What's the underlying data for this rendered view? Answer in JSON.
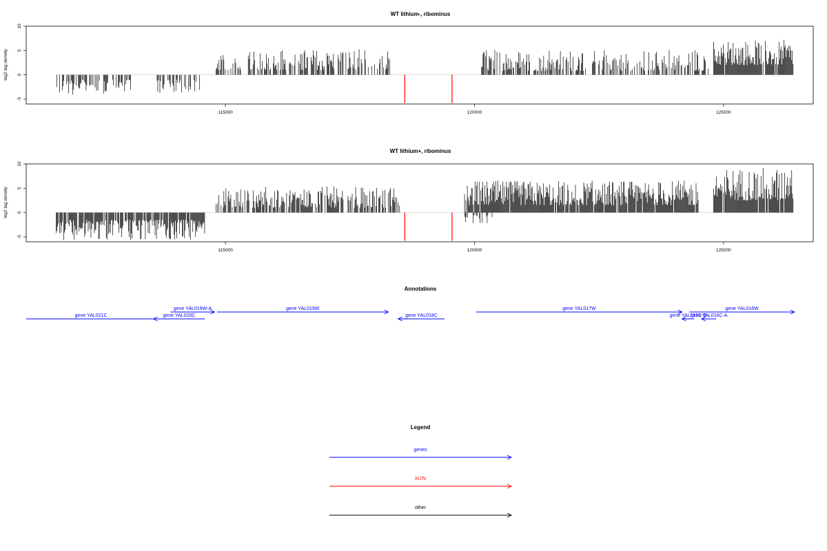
{
  "colors": {
    "gene": "#0000ff",
    "xut": "#ff0000",
    "other": "#000000",
    "density": "#000000"
  },
  "chart_data": [
    {
      "type": "bar",
      "title": "WT lithium-, ribominus",
      "ylabel": "log2 tag density",
      "xlim": [
        111000,
        126800
      ],
      "ylim": [
        -6,
        10
      ],
      "x_ticks": [
        115000,
        120000,
        125000
      ],
      "y_ticks": [
        -5,
        0,
        5,
        10
      ],
      "xut_markers": [
        {
          "x": 118600,
          "y": -5.8
        },
        {
          "x": 119550,
          "y": -5.8
        }
      ],
      "segments": [
        {
          "start": 111600,
          "end": 113100,
          "sign": -1,
          "min": 1.0,
          "max": 4.2,
          "density": 0.55
        },
        {
          "start": 113600,
          "end": 114500,
          "sign": -1,
          "min": 1.0,
          "max": 3.8,
          "density": 0.5
        },
        {
          "start": 114800,
          "end": 118300,
          "sign": 1,
          "min": 1.0,
          "max": 5.3,
          "density": 0.55
        },
        {
          "start": 120100,
          "end": 124700,
          "sign": 1,
          "min": 0.8,
          "max": 5.3,
          "density": 0.55
        },
        {
          "start": 124800,
          "end": 126400,
          "sign": 1,
          "min": 2.0,
          "max": 7.2,
          "density": 0.95
        }
      ]
    },
    {
      "type": "bar",
      "title": "WT lithium+, ribominus",
      "ylabel": "log2 tag density",
      "xlim": [
        111000,
        126800
      ],
      "ylim": [
        -6,
        10
      ],
      "x_ticks": [
        115000,
        120000,
        125000
      ],
      "y_ticks": [
        -5,
        0,
        5,
        10
      ],
      "xut_markers": [
        {
          "x": 118600,
          "y": -5.8
        },
        {
          "x": 119550,
          "y": -5.8
        }
      ],
      "segments": [
        {
          "start": 111600,
          "end": 114600,
          "sign": -1,
          "min": 1.5,
          "max": 5.7,
          "density": 0.85
        },
        {
          "start": 114800,
          "end": 118500,
          "sign": 1,
          "min": 1.0,
          "max": 5.4,
          "density": 0.7
        },
        {
          "start": 119750,
          "end": 120400,
          "sign": -1,
          "min": 0.5,
          "max": 2.2,
          "density": 0.25
        },
        {
          "start": 119800,
          "end": 124500,
          "sign": 1,
          "min": 1.5,
          "max": 6.6,
          "density": 0.95
        },
        {
          "start": 124800,
          "end": 126400,
          "sign": 1,
          "min": 2.5,
          "max": 9.3,
          "density": 0.95
        }
      ]
    }
  ],
  "annotations": {
    "title": "Annotations",
    "genes": [
      {
        "label": "gene YAL021C",
        "start": 111000,
        "end": 113650,
        "strand": "none",
        "row": 1
      },
      {
        "label": "gene YAL020C",
        "start": 113600,
        "end": 114650,
        "strand": "-",
        "row": 1
      },
      {
        "label": "gene YAL019W-A",
        "start": 113950,
        "end": 114850,
        "strand": "+",
        "row": 0
      },
      {
        "label": "gene YAL019W",
        "start": 114900,
        "end": 118400,
        "strand": "+",
        "row": 0
      },
      {
        "label": "gene YAL018C",
        "start": 118600,
        "end": 119550,
        "strand": "-",
        "row": 1
      },
      {
        "label": "gene YAL017W",
        "start": 120200,
        "end": 124400,
        "strand": "+",
        "row": 0
      },
      {
        "label": "gene YAL016C-B",
        "start": 124400,
        "end": 124650,
        "strand": "-",
        "row": 1
      },
      {
        "label": "gene YAL016C-A",
        "start": 124800,
        "end": 125100,
        "strand": "-",
        "row": 1
      },
      {
        "label": "gene YAL016W",
        "start": 124550,
        "end": 126700,
        "strand": "+",
        "row": 0
      }
    ]
  },
  "legend": {
    "title": "Legend",
    "items": [
      {
        "label": "genes",
        "color": "#0000ff"
      },
      {
        "label": "XUTs",
        "color": "#ff0000"
      },
      {
        "label": "other",
        "color": "#000000"
      }
    ]
  }
}
